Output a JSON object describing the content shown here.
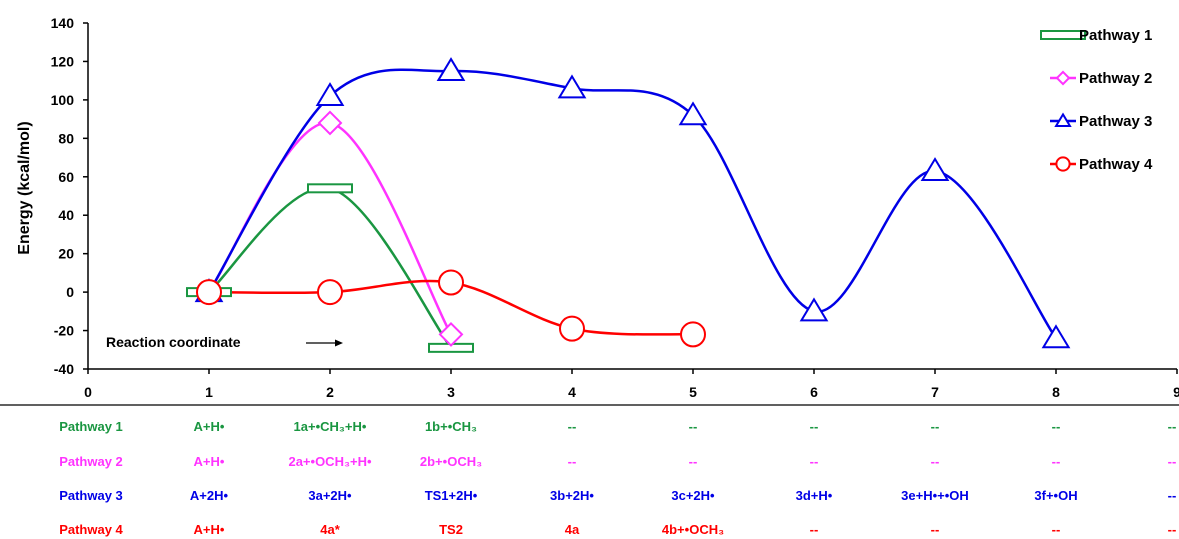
{
  "chart_data": {
    "type": "line",
    "title": "",
    "xlabel": "",
    "ylabel": "Energy (kcal/mol)",
    "xlim": [
      0,
      9
    ],
    "ylim": [
      -40,
      140
    ],
    "x_ticks": [
      "0",
      "1",
      "2",
      "3",
      "4",
      "5",
      "6",
      "7",
      "8",
      "9"
    ],
    "y_ticks": [
      "140",
      "120",
      "100",
      "80",
      "60",
      "40",
      "20",
      "0",
      "-20",
      "-40"
    ],
    "grid": false,
    "legend_position": "top-right",
    "annotation": "Reaction coordinate",
    "series": [
      {
        "name": "Pathway 1",
        "color": "#1a9641",
        "marker": "rect",
        "x": [
          1,
          2,
          3
        ],
        "y": [
          0,
          54,
          -29
        ]
      },
      {
        "name": "Pathway 2",
        "color": "#ff33ff",
        "marker": "diamond",
        "x": [
          1,
          2,
          3
        ],
        "y": [
          0,
          88,
          -22
        ]
      },
      {
        "name": "Pathway 3",
        "color": "#0000e6",
        "marker": "triangle",
        "x": [
          1,
          2,
          3,
          4,
          5,
          6,
          7,
          8
        ],
        "y": [
          0,
          102,
          115,
          106,
          92,
          -10,
          63,
          -24
        ]
      },
      {
        "name": "Pathway 4",
        "color": "#ff0000",
        "marker": "circle",
        "x": [
          1,
          2,
          3,
          4,
          5
        ],
        "y": [
          0,
          0,
          5,
          -19,
          -22
        ]
      }
    ]
  },
  "table": {
    "rows": [
      {
        "label": "Pathway 1",
        "color": "#1a9641",
        "cells": [
          "A+H•",
          "1a+•CH₃+H•",
          "1b+•CH₃",
          "--",
          "--",
          "--",
          "--",
          "--",
          "--"
        ]
      },
      {
        "label": "Pathway 2",
        "color": "#ff33ff",
        "cells": [
          "A+H•",
          "2a+•OCH₃+H•",
          "2b+•OCH₃",
          "--",
          "--",
          "--",
          "--",
          "--",
          "--"
        ]
      },
      {
        "label": "Pathway 3",
        "color": "#0000e6",
        "cells": [
          "A+2H•",
          "3a+2H•",
          "TS1+2H•",
          "3b+2H•",
          "3c+2H•",
          "3d+H•",
          "3e+H•+•OH",
          "3f+•OH",
          "--"
        ]
      },
      {
        "label": "Pathway 4",
        "color": "#ff0000",
        "cells": [
          "A+H•",
          "4a*",
          "TS2",
          "4a",
          "4b+•OCH₃",
          "--",
          "--",
          "--",
          "--"
        ]
      }
    ]
  }
}
